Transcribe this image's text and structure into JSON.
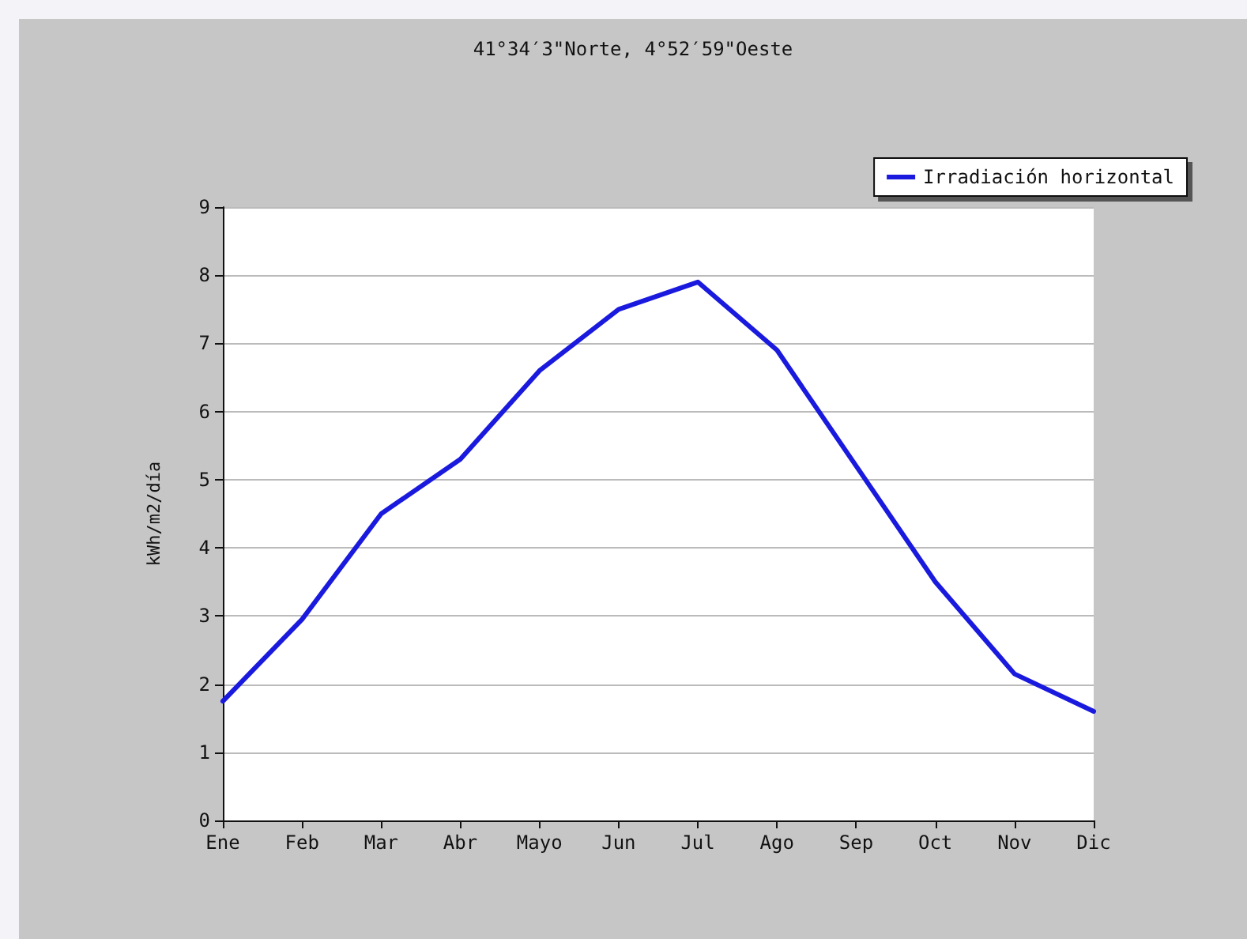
{
  "chart_data": {
    "type": "line",
    "title": "41°34′3\"Norte, 4°52′59\"Oeste",
    "ylabel": "kWh/m2/día",
    "categories": [
      "Ene",
      "Feb",
      "Mar",
      "Abr",
      "Mayo",
      "Jun",
      "Jul",
      "Ago",
      "Sep",
      "Oct",
      "Nov",
      "Dic"
    ],
    "series": [
      {
        "name": "Irradiación horizontal",
        "color": "#1a1adf",
        "values": [
          1.75,
          2.95,
          4.5,
          5.3,
          6.6,
          7.5,
          7.9,
          6.9,
          5.2,
          3.5,
          2.15,
          1.6
        ]
      }
    ],
    "ylim": [
      0,
      9
    ],
    "yticks": [
      0,
      1,
      2,
      3,
      4,
      5,
      6,
      7,
      8,
      9
    ],
    "grid": "y",
    "legend": "top right",
    "marker": "none",
    "line_style": "solid"
  }
}
